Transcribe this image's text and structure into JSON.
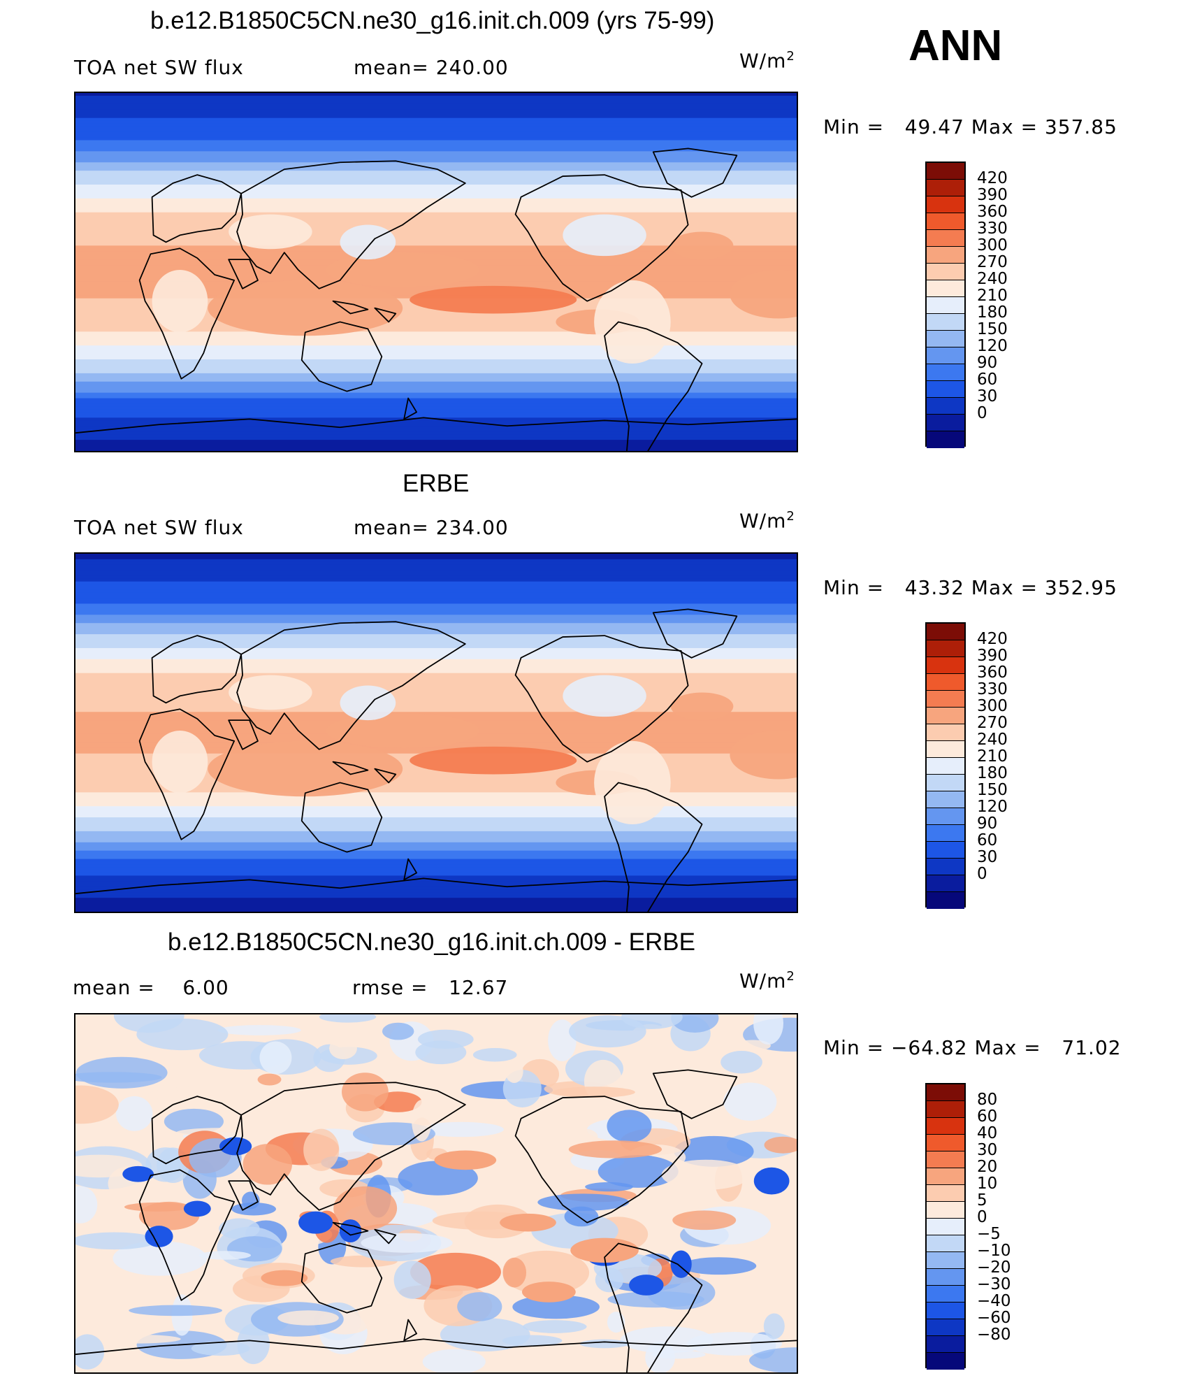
{
  "season": "ANN",
  "panels": [
    {
      "title": "b.e12.B1850C5CN.ne30_g16.init.ch.009 (yrs 75-99)",
      "left_label": "TOA net SW flux",
      "center_label": "mean= 240.00",
      "units_base": "W/m",
      "units_exp": "2",
      "minmax": "Min =   49.47 Max = 357.85",
      "map_type": "model",
      "colorbar": {
        "colors": [
          "#06087a",
          "#0a1c9e",
          "#0e37c4",
          "#1d56e6",
          "#3c78f0",
          "#6496f0",
          "#94b8f2",
          "#c2d8f6",
          "#e6eefb",
          "#fdeadc",
          "#fcccb0",
          "#f7a57e",
          "#f47c51",
          "#ef5a2c",
          "#d8330f",
          "#ad1f08",
          "#7c0d06"
        ],
        "labels": [
          "420",
          "390",
          "360",
          "330",
          "300",
          "270",
          "240",
          "210",
          "180",
          "150",
          "120",
          "90",
          "60",
          "30",
          "0"
        ]
      }
    },
    {
      "title": "ERBE",
      "left_label": "TOA net SW flux",
      "center_label": "mean= 234.00",
      "units_base": "W/m",
      "units_exp": "2",
      "minmax": "Min =   43.32 Max = 352.95",
      "map_type": "obs",
      "colorbar": {
        "colors": [
          "#06087a",
          "#0a1c9e",
          "#0e37c4",
          "#1d56e6",
          "#3c78f0",
          "#6496f0",
          "#94b8f2",
          "#c2d8f6",
          "#e6eefb",
          "#fdeadc",
          "#fcccb0",
          "#f7a57e",
          "#f47c51",
          "#ef5a2c",
          "#d8330f",
          "#ad1f08",
          "#7c0d06"
        ],
        "labels": [
          "420",
          "390",
          "360",
          "330",
          "300",
          "270",
          "240",
          "210",
          "180",
          "150",
          "120",
          "90",
          "60",
          "30",
          "0"
        ]
      }
    },
    {
      "title": "b.e12.B1850C5CN.ne30_g16.init.ch.009 - ERBE",
      "left_label": "mean =    6.00",
      "center_label": "rmse =   12.67",
      "units_base": "W/m",
      "units_exp": "2",
      "minmax": "Min = −64.82 Max =   71.02",
      "map_type": "diff",
      "colorbar": {
        "colors": [
          "#06087a",
          "#0a1c9e",
          "#0e37c4",
          "#1d56e6",
          "#3c78f0",
          "#6496f0",
          "#94b8f2",
          "#c2d8f6",
          "#e6eefb",
          "#fdeadc",
          "#fcccb0",
          "#f7a57e",
          "#f47c51",
          "#ef5a2c",
          "#d8330f",
          "#ad1f08",
          "#7c0d06"
        ],
        "labels": [
          "80",
          "60",
          "40",
          "30",
          "20",
          "10",
          "5",
          "0",
          "−5",
          "−10",
          "−20",
          "−30",
          "−40",
          "−60",
          "−80"
        ]
      }
    }
  ]
}
